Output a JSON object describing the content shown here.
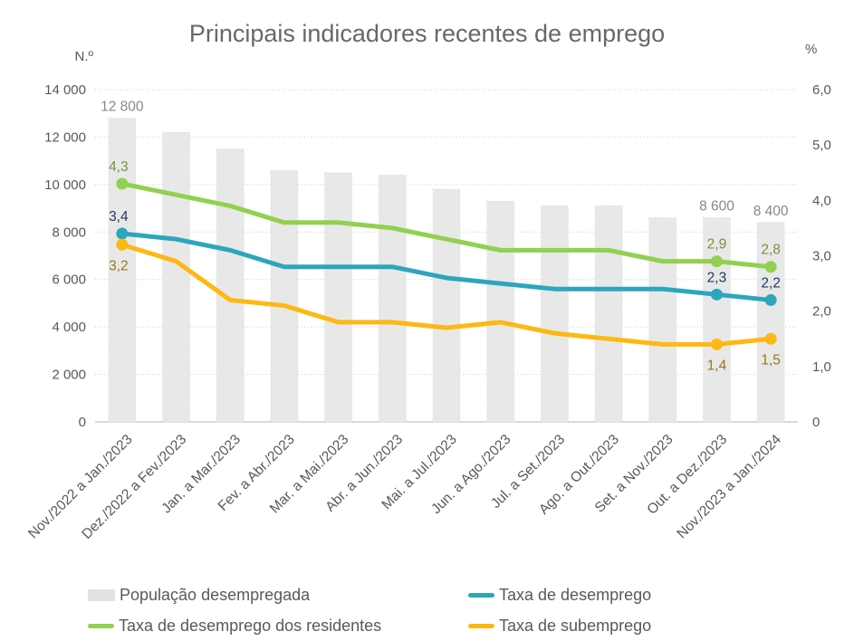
{
  "title": "Principais indicadores recentes de emprego",
  "chart_data": {
    "type": "combo-bar-line",
    "title": "Principais indicadores recentes de emprego",
    "grid": true,
    "left_axis": {
      "unit_label": "N.º",
      "min": 0,
      "max": 14000,
      "step": 2000,
      "tick_labels_top_to_bottom": [
        "14 000",
        "12 000",
        "10 000",
        "8 000",
        "6 000",
        "4 000",
        "2 000",
        "0"
      ]
    },
    "right_axis": {
      "unit_label": "%",
      "min": 0,
      "max": 6.0,
      "step": 1.0,
      "tick_labels_top_to_bottom": [
        "6,0",
        "5,0",
        "4,0",
        "3,0",
        "2,0",
        "1,0",
        "0"
      ]
    },
    "categories": [
      "Nov./2022 a Jan./2023",
      "Dez./2022 a Fev./2023",
      "Jan. a Mar./2023",
      "Fev. a Abr./2023",
      "Mar. a Mai./2023",
      "Abr. a Jun./2023",
      "Mai. a Jul./2023",
      "Jun. a Ago./2023",
      "Jul. a Set./2023",
      "Ago. a Out./2023",
      "Set. a Nov./2023",
      "Out. a Dez./2023",
      "Nov./2023 a Jan./2024"
    ],
    "series": [
      {
        "name": "População desempregada",
        "type": "bar",
        "axis": "left",
        "color": "#e8e8e8",
        "edge_color": "#d9d9d9",
        "label_color": "#878787",
        "values": [
          12800,
          12200,
          11500,
          10600,
          10500,
          10400,
          9800,
          9300,
          9100,
          9100,
          8600,
          8600,
          8400
        ],
        "point_labels": {
          "0": "12 800",
          "11": "8 600",
          "12": "8 400"
        }
      },
      {
        "name": "Taxa de desemprego dos residentes",
        "type": "line",
        "axis": "right",
        "color": "#92d050",
        "label_color": "#76923c",
        "label_side": "above",
        "marker_indices": [
          0,
          11,
          12
        ],
        "values": [
          4.3,
          4.1,
          3.9,
          3.6,
          3.6,
          3.5,
          3.3,
          3.1,
          3.1,
          3.1,
          2.9,
          2.9,
          2.8
        ],
        "point_labels": {
          "0": "4,3",
          "11": "2,9",
          "12": "2,8"
        }
      },
      {
        "name": "Taxa de desemprego",
        "type": "line",
        "axis": "right",
        "color": "#2ca6bd",
        "label_color": "#203864",
        "label_side": "above",
        "marker_indices": [
          0,
          11,
          12
        ],
        "values": [
          3.4,
          3.3,
          3.1,
          2.8,
          2.8,
          2.8,
          2.6,
          2.5,
          2.4,
          2.4,
          2.4,
          2.3,
          2.2
        ],
        "point_labels": {
          "0": "3,4",
          "11": "2,3",
          "12": "2,2"
        }
      },
      {
        "name": "Taxa de subemprego",
        "type": "line",
        "axis": "right",
        "color": "#fdb813",
        "label_color": "#97781a",
        "label_side": "below",
        "marker_indices": [
          0,
          11,
          12
        ],
        "values": [
          3.2,
          2.9,
          2.2,
          2.1,
          1.8,
          1.8,
          1.7,
          1.8,
          1.6,
          1.5,
          1.4,
          1.4,
          1.5
        ],
        "point_labels": {
          "0": "3,2",
          "11": "1,4",
          "12": "1,5"
        }
      }
    ],
    "legend_position": "bottom",
    "legend": [
      {
        "label": "População desempregada",
        "swatch": "bar",
        "color": "#e2e2e2"
      },
      {
        "label": "Taxa de desemprego",
        "swatch": "line",
        "color": "#2ca6bd"
      },
      {
        "label": "Taxa de desemprego dos residentes",
        "swatch": "line",
        "color": "#92d050"
      },
      {
        "label": "Taxa de subemprego",
        "swatch": "line",
        "color": "#fdb813"
      }
    ]
  }
}
